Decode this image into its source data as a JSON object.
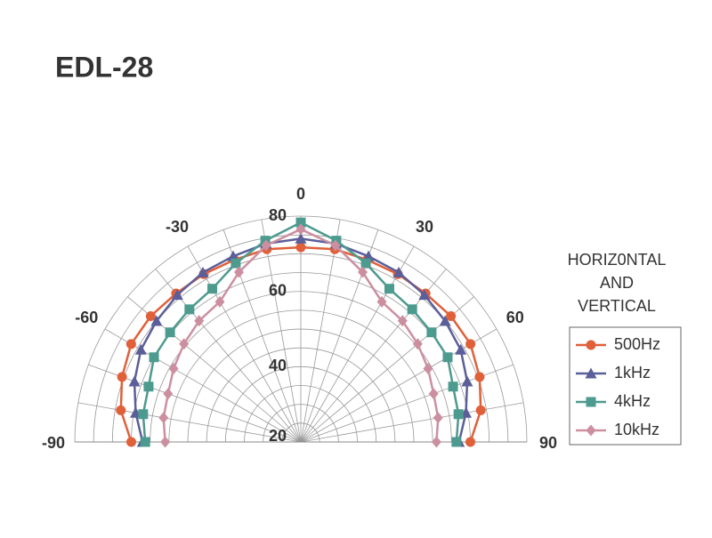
{
  "chart_data": {
    "type": "polar",
    "title": "EDL-28",
    "legend_title": [
      "HORIZ0NTAL",
      "AND",
      "VERTICAL"
    ],
    "theta": [
      -90,
      -80,
      -70,
      -60,
      -50,
      -40,
      -30,
      -20,
      -10,
      0,
      10,
      20,
      30,
      40,
      50,
      60,
      70,
      80,
      90
    ],
    "thetalim": [
      -90,
      90
    ],
    "thetaticks": [
      -90,
      -60,
      -30,
      0,
      30,
      60,
      90
    ],
    "thetagrid": [
      -90,
      -80,
      -70,
      -60,
      -50,
      -40,
      -30,
      -20,
      -10,
      0,
      10,
      20,
      30,
      40,
      50,
      60,
      70,
      80,
      90
    ],
    "rlim": [
      20,
      80
    ],
    "rticks": [
      20,
      40,
      60,
      80
    ],
    "rgrid": [
      25,
      30,
      35,
      40,
      45,
      50,
      55,
      60,
      65,
      70,
      75,
      80
    ],
    "grid": true,
    "legend": "right",
    "series": [
      {
        "name": "500Hz",
        "color": "#e0603a",
        "marker": "circle",
        "values": [
          65,
          68.5,
          70.5,
          72,
          72,
          71.5,
          71.5,
          71.5,
          72,
          71.7,
          72,
          71.5,
          71.5,
          71.5,
          72,
          72,
          70.5,
          68.5,
          65
        ]
      },
      {
        "name": "1kHz",
        "color": "#5b5f99",
        "marker": "triangle",
        "values": [
          62,
          64.5,
          67,
          69,
          70,
          71,
          72,
          72.5,
          73.5,
          74,
          73.5,
          72.5,
          72,
          71,
          70,
          69,
          67,
          64.5,
          62
        ]
      },
      {
        "name": "4kHz",
        "color": "#4d9a8f",
        "marker": "square",
        "values": [
          61.3,
          62.5,
          63,
          65,
          65.3,
          66,
          67,
          70.5,
          74.3,
          78.3,
          74.3,
          70.5,
          67,
          66,
          65.3,
          65,
          63,
          62.5,
          61.3
        ]
      },
      {
        "name": "10kHz",
        "color": "#cc8fa0",
        "marker": "diamond",
        "values": [
          56,
          57,
          57.5,
          59,
          60.5,
          62,
          63,
          68,
          73,
          76.5,
          73,
          68,
          63,
          62,
          60.5,
          59,
          57.5,
          57,
          56
        ]
      }
    ]
  }
}
